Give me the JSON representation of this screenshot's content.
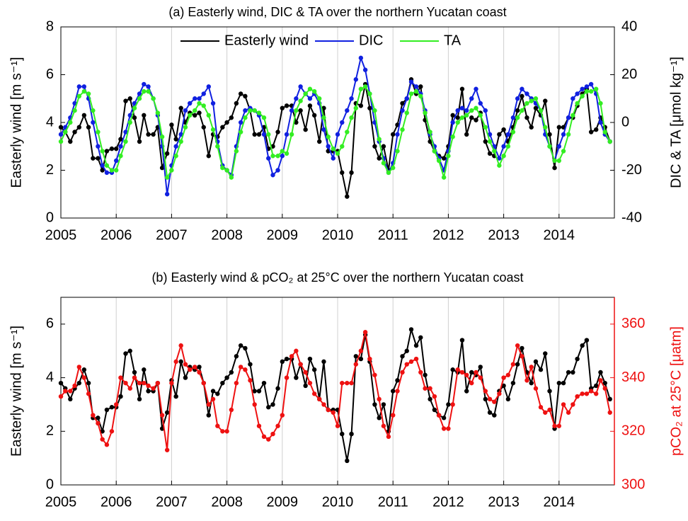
{
  "chart_data": [
    {
      "type": "line",
      "title": "(a) Easterly wind, DIC & TA over the northern Yucatan coast",
      "ylabel": "Easterly wind [m s⁻¹]",
      "y2label": "DIC & TA [μmol kg⁻¹]",
      "xlim": [
        2005,
        2015
      ],
      "xticks": [
        2005,
        2006,
        2007,
        2008,
        2009,
        2010,
        2011,
        2012,
        2013,
        2014
      ],
      "ylim": [
        0,
        8
      ],
      "yticks": [
        0,
        2,
        4,
        6,
        8
      ],
      "y2lim": [
        -40,
        40
      ],
      "y2ticks": [
        -40,
        -20,
        0,
        20,
        40
      ],
      "grid": "x",
      "legend": "top",
      "x": [
        2005,
        2005.08,
        2005.17,
        2005.25,
        2005.33,
        2005.42,
        2005.5,
        2005.58,
        2005.67,
        2005.75,
        2005.83,
        2005.92,
        2006,
        2006.08,
        2006.17,
        2006.25,
        2006.33,
        2006.42,
        2006.5,
        2006.58,
        2006.67,
        2006.75,
        2006.83,
        2006.92,
        2007,
        2007.08,
        2007.17,
        2007.25,
        2007.33,
        2007.42,
        2007.5,
        2007.58,
        2007.67,
        2007.75,
        2007.83,
        2007.92,
        2008,
        2008.08,
        2008.17,
        2008.25,
        2008.33,
        2008.42,
        2008.5,
        2008.58,
        2008.67,
        2008.75,
        2008.83,
        2008.92,
        2009,
        2009.08,
        2009.17,
        2009.25,
        2009.33,
        2009.42,
        2009.5,
        2009.58,
        2009.67,
        2009.75,
        2009.83,
        2009.92,
        2010,
        2010.08,
        2010.17,
        2010.25,
        2010.33,
        2010.42,
        2010.5,
        2010.58,
        2010.67,
        2010.75,
        2010.83,
        2010.92,
        2011,
        2011.08,
        2011.17,
        2011.25,
        2011.33,
        2011.42,
        2011.5,
        2011.58,
        2011.67,
        2011.75,
        2011.83,
        2011.92,
        2012,
        2012.08,
        2012.17,
        2012.25,
        2012.33,
        2012.42,
        2012.5,
        2012.58,
        2012.67,
        2012.75,
        2012.83,
        2012.92,
        2013,
        2013.08,
        2013.17,
        2013.25,
        2013.33,
        2013.42,
        2013.5,
        2013.58,
        2013.67,
        2013.75,
        2013.83,
        2013.92,
        2014,
        2014.08,
        2014.17,
        2014.25,
        2014.33,
        2014.42,
        2014.5,
        2014.58,
        2014.67,
        2014.75,
        2014.83,
        2014.92
      ],
      "series": [
        {
          "name": "Easterly wind",
          "color": "#000000",
          "values": [
            3.8,
            3.6,
            3.2,
            3.6,
            3.8,
            4.3,
            3.8,
            2.5,
            2.5,
            2.0,
            2.8,
            2.9,
            2.9,
            3.3,
            4.9,
            5.0,
            4.2,
            3.2,
            4.3,
            3.5,
            3.5,
            3.8,
            2.1,
            2.7,
            3.9,
            3.3,
            4.6,
            4.0,
            4.4,
            4.3,
            4.4,
            3.8,
            2.6,
            3.5,
            3.4,
            3.8,
            4.0,
            4.2,
            4.8,
            5.2,
            5.1,
            4.5,
            3.5,
            3.5,
            3.8,
            2.9,
            3.0,
            3.6,
            4.6,
            4.7,
            4.7,
            4.0,
            4.5,
            3.7,
            4.7,
            4.3,
            3.2,
            4.6,
            2.8,
            2.8,
            2.8,
            1.9,
            0.9,
            1.9,
            4.8,
            4.7,
            5.6,
            4.6,
            3.0,
            2.5,
            3.0,
            2.0,
            3.5,
            3.9,
            4.8,
            5.0,
            5.8,
            5.2,
            5.5,
            4.1,
            3.2,
            2.8,
            2.6,
            2.5,
            3.0,
            4.3,
            4.2,
            5.4,
            3.5,
            4.2,
            4.1,
            4.4,
            3.2,
            2.7,
            2.6,
            3.5,
            3.7,
            3.2,
            3.8,
            4.5,
            5.1,
            4.2,
            3.8,
            4.6,
            4.3,
            4.9,
            3.5,
            2.1,
            3.8,
            3.8,
            4.2,
            4.2,
            4.7,
            5.2,
            5.4,
            3.6,
            3.7,
            4.2,
            3.8,
            3.2
          ]
        },
        {
          "name": "DIC",
          "color": "#1020e0",
          "axis": "y2",
          "values": [
            -5,
            -2,
            2,
            8,
            15,
            15,
            10,
            0,
            -10,
            -18,
            -21,
            -21,
            -16,
            -10,
            -4,
            3,
            8,
            12,
            16,
            15,
            10,
            3,
            -10,
            -30,
            -18,
            -10,
            -5,
            5,
            8,
            10,
            10,
            12,
            15,
            8,
            -8,
            -18,
            -20,
            -22,
            -10,
            0,
            5,
            6,
            5,
            3,
            -5,
            -15,
            -22,
            -20,
            -14,
            -5,
            5,
            10,
            15,
            12,
            10,
            12,
            8,
            -3,
            -10,
            -15,
            -5,
            0,
            5,
            10,
            18,
            27,
            22,
            12,
            0,
            -8,
            -15,
            -21,
            -17,
            -5,
            5,
            10,
            17,
            15,
            12,
            5,
            -5,
            -10,
            -15,
            -20,
            -12,
            0,
            5,
            6,
            5,
            10,
            14,
            8,
            5,
            -5,
            -10,
            -15,
            -10,
            -5,
            2,
            10,
            14,
            12,
            10,
            8,
            5,
            -5,
            -10,
            -16,
            -10,
            -5,
            2,
            10,
            12,
            14,
            15,
            16,
            12,
            0,
            -5,
            -8
          ]
        },
        {
          "name": "TA",
          "color": "#33ee22",
          "axis": "y2",
          "values": [
            -8,
            -4,
            0,
            5,
            11,
            13,
            12,
            5,
            -4,
            -12,
            -18,
            -20,
            -20,
            -14,
            -8,
            0,
            6,
            10,
            13,
            13,
            10,
            4,
            -6,
            -23,
            -20,
            -14,
            -8,
            -2,
            3,
            5,
            8,
            7,
            3,
            -3,
            -10,
            -19,
            -20,
            -23,
            -12,
            -4,
            2,
            5,
            5,
            4,
            2,
            -5,
            -14,
            -14,
            -12,
            -13,
            -5,
            5,
            9,
            12,
            14,
            13,
            10,
            2,
            -6,
            -11,
            -13,
            -10,
            -4,
            2,
            6,
            14,
            15,
            12,
            5,
            -7,
            -17,
            -21,
            -19,
            -12,
            -3,
            4,
            12,
            13,
            11,
            4,
            -4,
            -12,
            -16,
            -23,
            -14,
            -6,
            0,
            2,
            3,
            5,
            6,
            3,
            -2,
            -8,
            -12,
            -18,
            -14,
            -10,
            -4,
            2,
            5,
            8,
            9,
            10,
            5,
            -2,
            -10,
            -16,
            -16,
            -12,
            -5,
            3,
            8,
            11,
            13,
            13,
            14,
            8,
            -4,
            -8
          ]
        }
      ]
    },
    {
      "type": "line",
      "title": "(b) Easterly wind & pCO₂ at 25°C over the northern Yucatan coast",
      "ylabel": "Easterly wind [m s⁻¹]",
      "y2label": "pCO₂ at 25°C [μatm]",
      "xlim": [
        2005,
        2015
      ],
      "xticks": [
        2005,
        2006,
        2007,
        2008,
        2009,
        2010,
        2011,
        2012,
        2013,
        2014
      ],
      "ylim": [
        0,
        7
      ],
      "yticks": [
        0,
        2,
        4,
        6
      ],
      "y2lim": [
        300,
        370
      ],
      "y2ticks": [
        300,
        320,
        340,
        360
      ],
      "grid": "x",
      "legend": false,
      "x": [
        2005,
        2005.08,
        2005.17,
        2005.25,
        2005.33,
        2005.42,
        2005.5,
        2005.58,
        2005.67,
        2005.75,
        2005.83,
        2005.92,
        2006,
        2006.08,
        2006.17,
        2006.25,
        2006.33,
        2006.42,
        2006.5,
        2006.58,
        2006.67,
        2006.75,
        2006.83,
        2006.92,
        2007,
        2007.08,
        2007.17,
        2007.25,
        2007.33,
        2007.42,
        2007.5,
        2007.58,
        2007.67,
        2007.75,
        2007.83,
        2007.92,
        2008,
        2008.08,
        2008.17,
        2008.25,
        2008.33,
        2008.42,
        2008.5,
        2008.58,
        2008.67,
        2008.75,
        2008.83,
        2008.92,
        2009,
        2009.08,
        2009.17,
        2009.25,
        2009.33,
        2009.42,
        2009.5,
        2009.58,
        2009.67,
        2009.75,
        2009.83,
        2009.92,
        2010,
        2010.08,
        2010.17,
        2010.25,
        2010.33,
        2010.42,
        2010.5,
        2010.58,
        2010.67,
        2010.75,
        2010.83,
        2010.92,
        2011,
        2011.08,
        2011.17,
        2011.25,
        2011.33,
        2011.42,
        2011.5,
        2011.58,
        2011.67,
        2011.75,
        2011.83,
        2011.92,
        2012,
        2012.08,
        2012.17,
        2012.25,
        2012.33,
        2012.42,
        2012.5,
        2012.58,
        2012.67,
        2012.75,
        2012.83,
        2012.92,
        2013,
        2013.08,
        2013.17,
        2013.25,
        2013.33,
        2013.42,
        2013.5,
        2013.58,
        2013.67,
        2013.75,
        2013.83,
        2013.92,
        2014,
        2014.08,
        2014.17,
        2014.25,
        2014.33,
        2014.42,
        2014.5,
        2014.58,
        2014.67,
        2014.75,
        2014.83,
        2014.92
      ],
      "series": [
        {
          "color": "#000000",
          "values": [
            3.8,
            3.6,
            3.2,
            3.6,
            3.8,
            4.3,
            3.8,
            2.5,
            2.5,
            2.0,
            2.8,
            2.9,
            2.9,
            3.3,
            4.9,
            5.0,
            4.2,
            3.2,
            4.3,
            3.5,
            3.5,
            3.8,
            2.1,
            2.7,
            3.9,
            3.3,
            4.6,
            4.0,
            4.4,
            4.3,
            4.4,
            3.8,
            2.6,
            3.5,
            3.4,
            3.8,
            4.0,
            4.2,
            4.8,
            5.2,
            5.1,
            4.5,
            3.5,
            3.5,
            3.8,
            2.9,
            3.0,
            3.6,
            4.6,
            4.7,
            4.7,
            4.0,
            4.5,
            3.7,
            4.7,
            4.3,
            3.2,
            4.6,
            2.8,
            2.8,
            2.8,
            1.9,
            0.9,
            1.9,
            4.8,
            4.7,
            5.6,
            4.6,
            3.0,
            2.5,
            3.0,
            2.0,
            3.5,
            3.9,
            4.8,
            5.0,
            5.8,
            5.2,
            5.5,
            4.1,
            3.2,
            2.8,
            2.6,
            2.5,
            3.0,
            4.3,
            4.2,
            5.4,
            3.5,
            4.2,
            4.1,
            4.4,
            3.2,
            2.7,
            2.6,
            3.5,
            3.7,
            3.2,
            3.8,
            4.5,
            5.1,
            4.2,
            3.8,
            4.6,
            4.3,
            4.9,
            3.5,
            2.1,
            3.8,
            3.8,
            4.2,
            4.2,
            4.7,
            5.2,
            5.4,
            3.6,
            3.7,
            4.2,
            3.8,
            3.2
          ]
        },
        {
          "color": "#ee1111",
          "axis": "y2",
          "values": [
            333,
            335,
            335,
            337,
            344,
            340,
            334,
            326,
            323,
            317,
            315,
            320,
            330,
            340,
            338,
            336,
            340,
            338,
            338,
            337,
            336,
            338,
            326,
            313,
            338,
            346,
            352,
            345,
            343,
            344,
            342,
            338,
            330,
            332,
            322,
            320,
            320,
            328,
            338,
            344,
            343,
            339,
            330,
            322,
            318,
            317,
            319,
            322,
            326,
            340,
            348,
            350,
            345,
            342,
            338,
            334,
            332,
            330,
            328,
            327,
            322,
            338,
            338,
            338,
            345,
            350,
            357,
            347,
            341,
            332,
            322,
            318,
            326,
            335,
            342,
            345,
            346,
            347,
            342,
            336,
            336,
            333,
            326,
            321,
            321,
            330,
            343,
            342,
            341,
            338,
            342,
            340,
            335,
            332,
            331,
            334,
            340,
            341,
            345,
            352,
            348,
            339,
            344,
            336,
            329,
            327,
            328,
            322,
            322,
            330,
            327,
            330,
            333,
            334,
            334,
            335,
            334,
            339,
            336,
            327
          ]
        }
      ]
    }
  ]
}
